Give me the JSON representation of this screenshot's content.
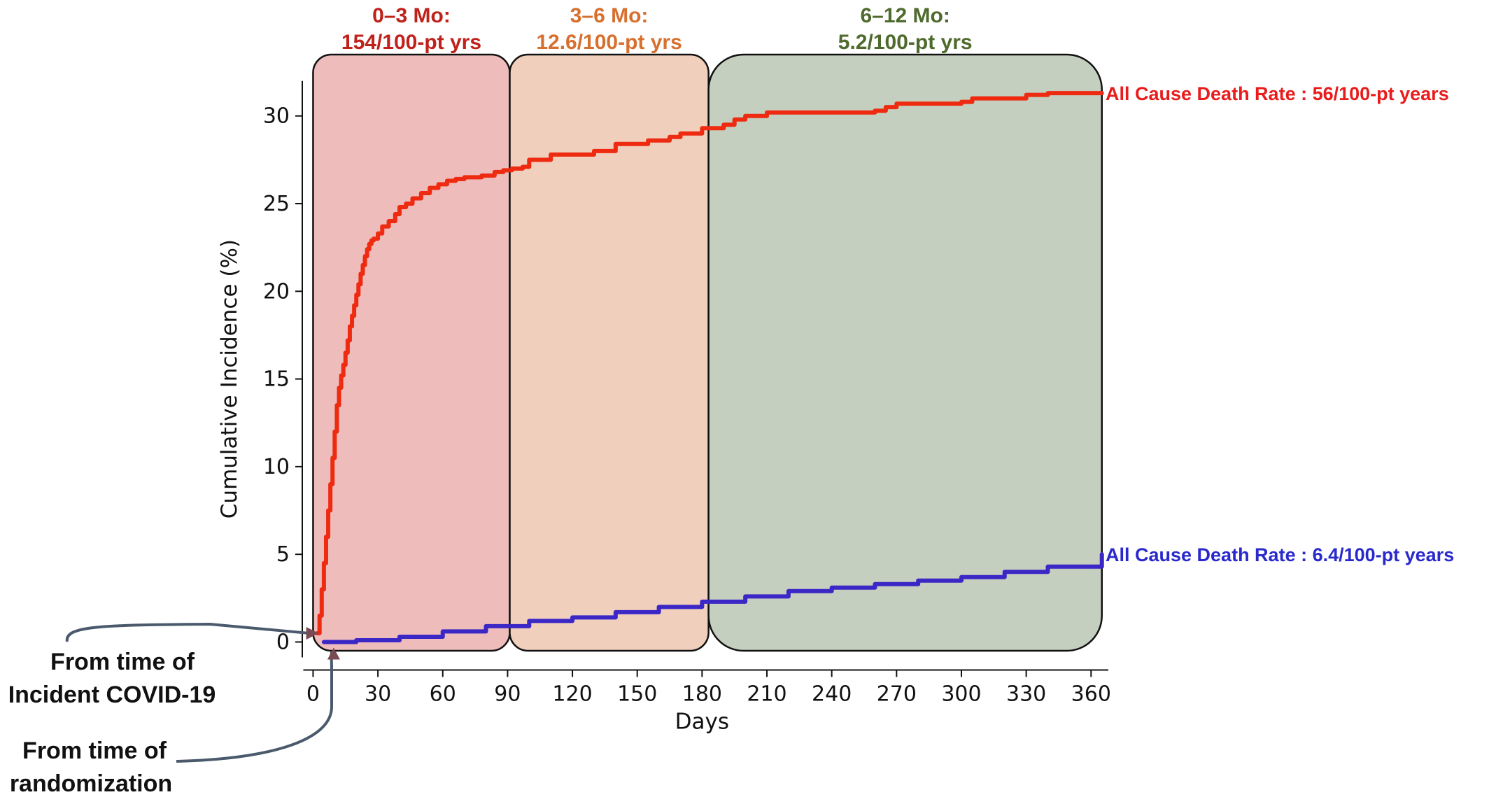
{
  "chart_data": {
    "type": "line",
    "xlabel": "Days",
    "ylabel": "Cumulative Incidence (%)",
    "xlim": [
      -5,
      368
    ],
    "ylim": [
      -0.5,
      33.5
    ],
    "xticks": [
      0,
      30,
      60,
      90,
      120,
      150,
      180,
      210,
      240,
      270,
      300,
      330,
      360
    ],
    "yticks": [
      0,
      5,
      10,
      15,
      20,
      25,
      30
    ],
    "phases": [
      {
        "title": "0–3 Mo:",
        "rate": "154/100-pt yrs",
        "x_start": 0,
        "x_end": 91,
        "fill": "#efbcbc",
        "text_color": "#c0211a"
      },
      {
        "title": "3–6 Mo:",
        "rate": "12.6/100-pt yrs",
        "x_start": 91,
        "x_end": 183,
        "fill": "#f0cfbc",
        "text_color": "#d7702e"
      },
      {
        "title": "6–12 Mo:",
        "rate": "5.2/100-pt yrs",
        "x_start": 183,
        "x_end": 365,
        "fill": "#c4cfbf",
        "text_color": "#4e6a2c"
      }
    ],
    "series": [
      {
        "label": "All Cause Death Rate : 56/100-pt years",
        "color": "#ee2a10",
        "label_color": "#e81c1c",
        "x": [
          2,
          3,
          4,
          5,
          6,
          7,
          8,
          9,
          10,
          11,
          12,
          13,
          14,
          15,
          16,
          17,
          18,
          19,
          20,
          21,
          22,
          23,
          24,
          25,
          26,
          27,
          28,
          30,
          32,
          35,
          38,
          40,
          43,
          46,
          50,
          54,
          58,
          62,
          66,
          70,
          78,
          84,
          88,
          92,
          97,
          100,
          110,
          125,
          130,
          140,
          155,
          165,
          170,
          180,
          190,
          195,
          200,
          210,
          220,
          240,
          260,
          265,
          270,
          300,
          305,
          325,
          330,
          340,
          360,
          365
        ],
        "y": [
          0.5,
          1.5,
          3.0,
          4.5,
          6.0,
          7.5,
          9.0,
          10.5,
          12.0,
          13.5,
          14.5,
          15.2,
          15.8,
          16.5,
          17.2,
          18.0,
          18.6,
          19.2,
          19.8,
          20.4,
          21.0,
          21.5,
          22.0,
          22.4,
          22.7,
          22.9,
          23.0,
          23.3,
          23.7,
          24.0,
          24.4,
          24.8,
          25.0,
          25.3,
          25.6,
          25.9,
          26.1,
          26.3,
          26.4,
          26.5,
          26.6,
          26.8,
          26.9,
          27.0,
          27.1,
          27.5,
          27.8,
          27.8,
          28.0,
          28.4,
          28.6,
          28.8,
          29.0,
          29.3,
          29.5,
          29.8,
          30.0,
          30.2,
          30.2,
          30.2,
          30.3,
          30.5,
          30.7,
          30.8,
          31.0,
          31.0,
          31.2,
          31.3,
          31.3,
          31.3
        ]
      },
      {
        "label": "All Cause Death Rate : 6.4/100-pt years",
        "color": "#3b27c6",
        "label_color": "#2a2acc",
        "x": [
          5,
          20,
          40,
          60,
          80,
          100,
          120,
          140,
          160,
          180,
          200,
          220,
          240,
          260,
          280,
          300,
          320,
          340,
          365
        ],
        "y": [
          0.0,
          0.1,
          0.3,
          0.6,
          0.9,
          1.2,
          1.4,
          1.7,
          2.0,
          2.3,
          2.6,
          2.9,
          3.1,
          3.3,
          3.5,
          3.7,
          4.0,
          4.3,
          5.0
        ]
      }
    ],
    "annotations": [
      {
        "lines": [
          "From time of",
          "Incident COVID-19"
        ]
      },
      {
        "lines": [
          "From time of",
          "randomization"
        ]
      }
    ]
  }
}
